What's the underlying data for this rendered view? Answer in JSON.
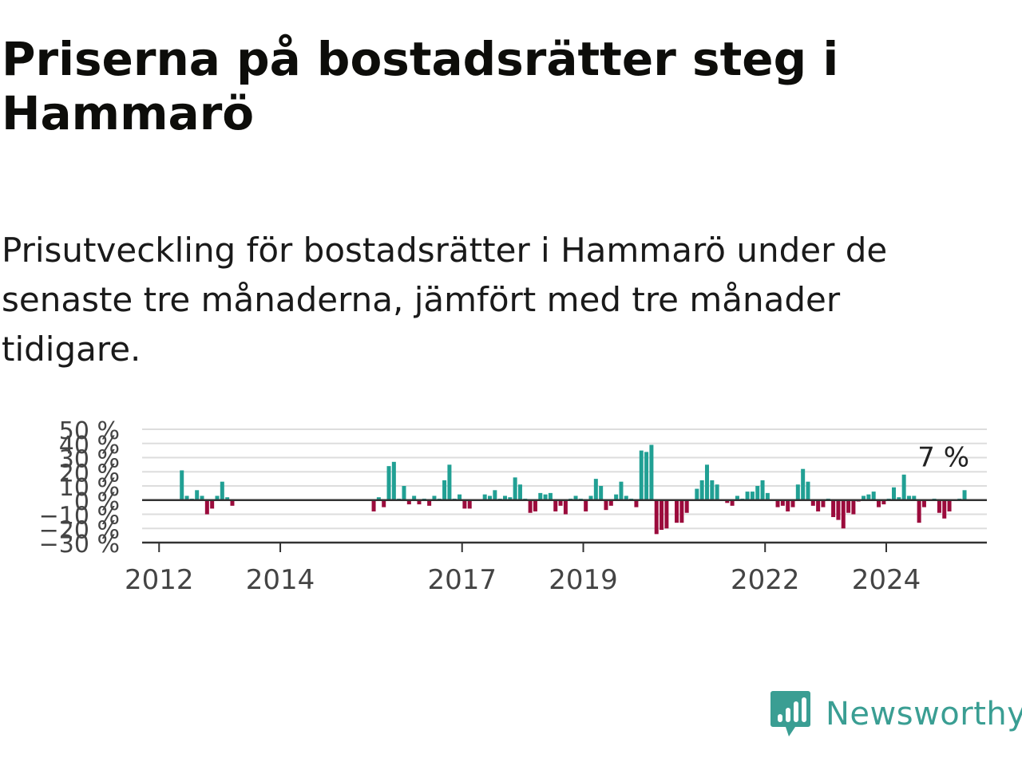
{
  "title": "Priserna på bostadsrätter steg i Hammarö",
  "subtitle": "Prisutveckling för bostadsrätter i Hammarö under de senaste tre månaderna, jämfört med tre månader tidigare.",
  "brand": {
    "name": "Newsworthy",
    "icon": "newsworthy-logo-icon"
  },
  "colors": {
    "positive": "#21a094",
    "negative": "#9b0b3c",
    "zero_line": "#333333",
    "grid": "#dddddd",
    "brand": "#3a9e93"
  },
  "chart_data": {
    "type": "bar",
    "title": "",
    "xlabel": "",
    "ylabel": "",
    "ylim": [
      -30,
      50
    ],
    "y_ticks": [
      50,
      40,
      30,
      20,
      10,
      0,
      -10,
      -20,
      -30
    ],
    "y_tick_labels": [
      "50 %",
      "40 %",
      "30 %",
      "20 %",
      "10 %",
      "0 %",
      "−10 %",
      "−20 %",
      "−30 %"
    ],
    "x_ticks": [
      2012,
      2014,
      2017,
      2019,
      2022,
      2024
    ],
    "x_tick_labels": [
      "2012",
      "2014",
      "2017",
      "2019",
      "2022",
      "2024"
    ],
    "grid": true,
    "last_value_label": "7 %",
    "series": [
      {
        "values": [
          {
            "x": "2012-05",
            "y": 21
          },
          {
            "x": "2012-06",
            "y": 3
          },
          {
            "x": "2012-07",
            "y": 1
          },
          {
            "x": "2012-08",
            "y": 7
          },
          {
            "x": "2012-09",
            "y": 3
          },
          {
            "x": "2012-10",
            "y": -10
          },
          {
            "x": "2012-11",
            "y": -6
          },
          {
            "x": "2012-12",
            "y": 3
          },
          {
            "x": "2013-01",
            "y": 13
          },
          {
            "x": "2013-02",
            "y": 2
          },
          {
            "x": "2013-03",
            "y": -4
          },
          {
            "x": "2015-07",
            "y": -8
          },
          {
            "x": "2015-08",
            "y": 2
          },
          {
            "x": "2015-09",
            "y": -5
          },
          {
            "x": "2015-10",
            "y": 24
          },
          {
            "x": "2015-11",
            "y": 27
          },
          {
            "x": "2015-12",
            "y": 1
          },
          {
            "x": "2016-01",
            "y": 10
          },
          {
            "x": "2016-02",
            "y": -3
          },
          {
            "x": "2016-03",
            "y": 3
          },
          {
            "x": "2016-04",
            "y": -3
          },
          {
            "x": "2016-05",
            "y": 1
          },
          {
            "x": "2016-06",
            "y": -4
          },
          {
            "x": "2016-07",
            "y": 3
          },
          {
            "x": "2016-08",
            "y": 1
          },
          {
            "x": "2016-09",
            "y": 14
          },
          {
            "x": "2016-10",
            "y": 25
          },
          {
            "x": "2016-11",
            "y": 1
          },
          {
            "x": "2016-12",
            "y": 4
          },
          {
            "x": "2017-01",
            "y": -6
          },
          {
            "x": "2017-02",
            "y": -6
          },
          {
            "x": "2017-05",
            "y": 4
          },
          {
            "x": "2017-06",
            "y": 3
          },
          {
            "x": "2017-07",
            "y": 7
          },
          {
            "x": "2017-08",
            "y": 1
          },
          {
            "x": "2017-09",
            "y": 3
          },
          {
            "x": "2017-10",
            "y": 2
          },
          {
            "x": "2017-11",
            "y": 16
          },
          {
            "x": "2017-12",
            "y": 11
          },
          {
            "x": "2018-01",
            "y": 1
          },
          {
            "x": "2018-02",
            "y": -9
          },
          {
            "x": "2018-03",
            "y": -8
          },
          {
            "x": "2018-04",
            "y": 5
          },
          {
            "x": "2018-05",
            "y": 4
          },
          {
            "x": "2018-06",
            "y": 5
          },
          {
            "x": "2018-07",
            "y": -8
          },
          {
            "x": "2018-08",
            "y": -4
          },
          {
            "x": "2018-09",
            "y": -10
          },
          {
            "x": "2018-10",
            "y": 1
          },
          {
            "x": "2018-11",
            "y": 3
          },
          {
            "x": "2018-12",
            "y": 1
          },
          {
            "x": "2019-01",
            "y": -8
          },
          {
            "x": "2019-02",
            "y": 3
          },
          {
            "x": "2019-03",
            "y": 15
          },
          {
            "x": "2019-04",
            "y": 10
          },
          {
            "x": "2019-05",
            "y": -7
          },
          {
            "x": "2019-06",
            "y": -4
          },
          {
            "x": "2019-07",
            "y": 4
          },
          {
            "x": "2019-08",
            "y": 13
          },
          {
            "x": "2019-09",
            "y": 3
          },
          {
            "x": "2019-10",
            "y": 1
          },
          {
            "x": "2019-11",
            "y": -5
          },
          {
            "x": "2019-12",
            "y": 35
          },
          {
            "x": "2020-01",
            "y": 34
          },
          {
            "x": "2020-02",
            "y": 39
          },
          {
            "x": "2020-03",
            "y": -24
          },
          {
            "x": "2020-04",
            "y": -21
          },
          {
            "x": "2020-05",
            "y": -20
          },
          {
            "x": "2020-07",
            "y": -16
          },
          {
            "x": "2020-08",
            "y": -16
          },
          {
            "x": "2020-09",
            "y": -9
          },
          {
            "x": "2020-11",
            "y": 8
          },
          {
            "x": "2020-12",
            "y": 14
          },
          {
            "x": "2021-01",
            "y": 25
          },
          {
            "x": "2021-02",
            "y": 14
          },
          {
            "x": "2021-03",
            "y": 11
          },
          {
            "x": "2021-05",
            "y": -2
          },
          {
            "x": "2021-06",
            "y": -4
          },
          {
            "x": "2021-07",
            "y": 3
          },
          {
            "x": "2021-08",
            "y": 1
          },
          {
            "x": "2021-09",
            "y": 6
          },
          {
            "x": "2021-10",
            "y": 6
          },
          {
            "x": "2021-11",
            "y": 10
          },
          {
            "x": "2021-12",
            "y": 14
          },
          {
            "x": "2022-01",
            "y": 5
          },
          {
            "x": "2022-03",
            "y": -5
          },
          {
            "x": "2022-04",
            "y": -4
          },
          {
            "x": "2022-05",
            "y": -8
          },
          {
            "x": "2022-06",
            "y": -5
          },
          {
            "x": "2022-07",
            "y": 11
          },
          {
            "x": "2022-08",
            "y": 22
          },
          {
            "x": "2022-09",
            "y": 13
          },
          {
            "x": "2022-10",
            "y": -4
          },
          {
            "x": "2022-11",
            "y": -8
          },
          {
            "x": "2022-12",
            "y": -5
          },
          {
            "x": "2023-01",
            "y": 1
          },
          {
            "x": "2023-02",
            "y": -12
          },
          {
            "x": "2023-03",
            "y": -14
          },
          {
            "x": "2023-04",
            "y": -20
          },
          {
            "x": "2023-05",
            "y": -9
          },
          {
            "x": "2023-06",
            "y": -10
          },
          {
            "x": "2023-07",
            "y": -1
          },
          {
            "x": "2023-08",
            "y": 3
          },
          {
            "x": "2023-09",
            "y": 4
          },
          {
            "x": "2023-10",
            "y": 6
          },
          {
            "x": "2023-11",
            "y": -5
          },
          {
            "x": "2023-12",
            "y": -3
          },
          {
            "x": "2024-01",
            "y": 1
          },
          {
            "x": "2024-02",
            "y": 9
          },
          {
            "x": "2024-03",
            "y": 2
          },
          {
            "x": "2024-04",
            "y": 18
          },
          {
            "x": "2024-05",
            "y": 3
          },
          {
            "x": "2024-06",
            "y": 3
          },
          {
            "x": "2024-07",
            "y": -16
          },
          {
            "x": "2024-08",
            "y": -5
          },
          {
            "x": "2024-10",
            "y": 1
          },
          {
            "x": "2024-11",
            "y": -9
          },
          {
            "x": "2024-12",
            "y": -13
          },
          {
            "x": "2025-01",
            "y": -8
          },
          {
            "x": "2025-03",
            "y": 1
          },
          {
            "x": "2025-04",
            "y": 7
          }
        ]
      }
    ]
  }
}
